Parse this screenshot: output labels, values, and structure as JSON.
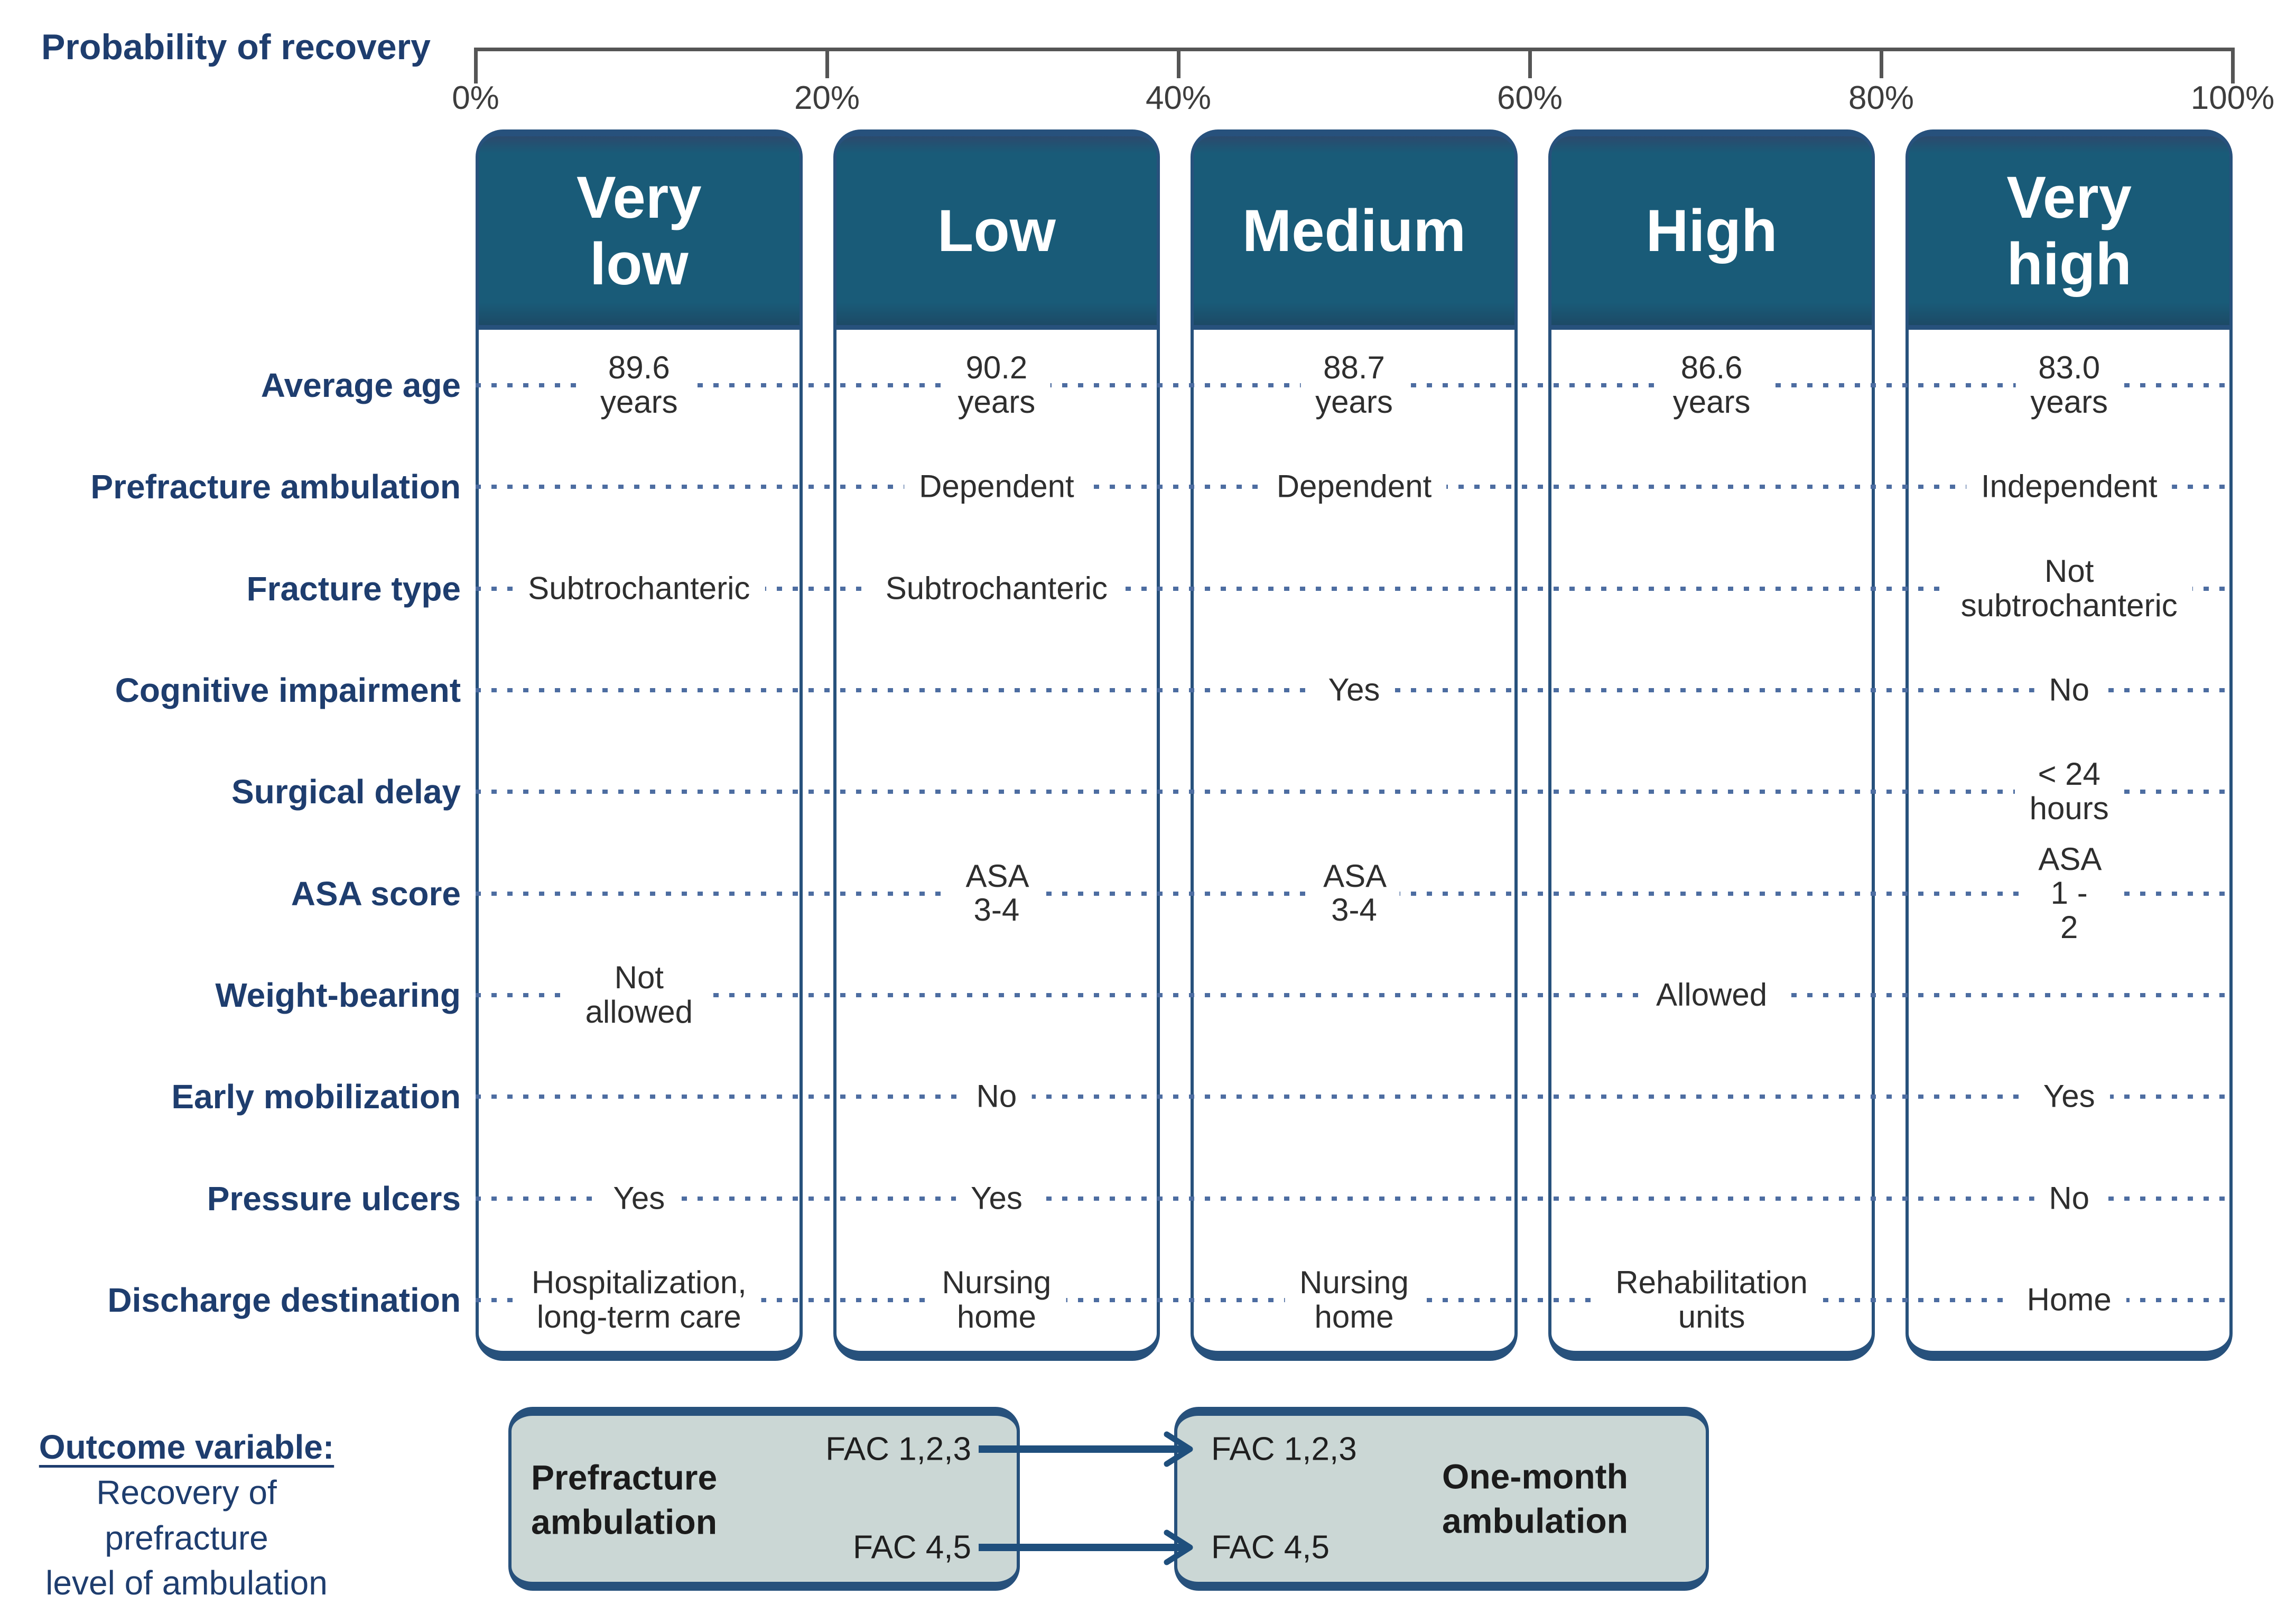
{
  "axis": {
    "title": "Probability of recovery",
    "ticks": [
      "0%",
      "20%",
      "40%",
      "60%",
      "80%",
      "100%"
    ]
  },
  "row_labels": [
    "Average age",
    "Prefracture ambulation",
    "Fracture type",
    "Cognitive impairment",
    "Surgical delay",
    "ASA score",
    "Weight-bearing",
    "Early mobilization",
    "Pressure ulcers",
    "Discharge destination"
  ],
  "columns": [
    {
      "label": "Very\nlow",
      "values": [
        "89.6 years",
        "",
        "Subtrochanteric",
        "",
        "",
        "",
        "Not allowed",
        "",
        "Yes",
        "Hospitalization,\nlong-term care"
      ]
    },
    {
      "label": "Low",
      "values": [
        "90.2 years",
        "Dependent",
        "Subtrochanteric",
        "",
        "",
        "ASA 3-4",
        "",
        "No",
        "Yes",
        "Nursing home"
      ]
    },
    {
      "label": "Medium",
      "values": [
        "88.7 years",
        "Dependent",
        "",
        "Yes",
        "",
        "ASA 3-4",
        "",
        "",
        "",
        "Nursing home"
      ]
    },
    {
      "label": "High",
      "values": [
        "86.6 years",
        "",
        "",
        "",
        "",
        "",
        "Allowed",
        "",
        "",
        "Rehabilitation\nunits"
      ]
    },
    {
      "label": "Very\nhigh",
      "values": [
        "83.0 years",
        "Independent",
        "Not\nsubtrochanteric",
        "No",
        "< 24 hours",
        "ASA 1 - 2",
        "",
        "Yes",
        "No",
        "Home"
      ]
    }
  ],
  "outcome": {
    "heading": "Outcome variable:",
    "line1": "Recovery of prefracture",
    "line2": "level of ambulation",
    "left_box": {
      "title": "Prefracture\nambulation",
      "top_item": "FAC 1,2,3",
      "bottom_item": "FAC 4,5"
    },
    "right_box": {
      "title": "One-month\nambulation",
      "top_item": "FAC 1,2,3",
      "bottom_item": "FAC 4,5"
    }
  },
  "colors": {
    "header_teal": "#195b78",
    "border_navy": "#27517c",
    "label_navy": "#1e3d6e",
    "dot_blue": "#4d6da1",
    "value_gray": "#2e2e2e",
    "box_fill": "#cbd7d5",
    "arrow_navy": "#1f4f7d",
    "axis_gray": "#555555"
  }
}
